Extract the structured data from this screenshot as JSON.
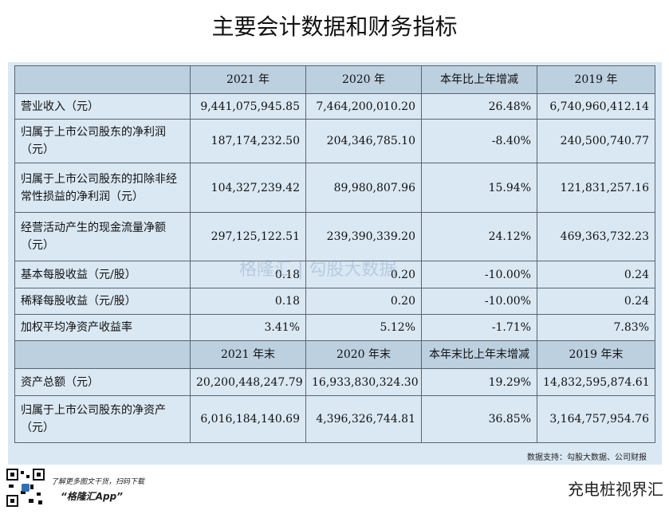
{
  "title": "主要会计数据和财务指标",
  "table": {
    "header": [
      "",
      "2021 年",
      "2020 年",
      "本年比上年增减",
      "2019 年"
    ],
    "rows": [
      [
        "营业收入（元）",
        "9,441,075,945.85",
        "7,464,200,010.20",
        "26.48%",
        "6,740,960,412.14"
      ],
      [
        "归属于上市公司股东的净利润（元）",
        "187,174,232.50",
        "204,346,785.10",
        "-8.40%",
        "240,500,740.77"
      ],
      [
        "归属于上市公司股东的扣除非经常性损益的净利润（元）",
        "104,327,239.42",
        "89,980,807.96",
        "15.94%",
        "121,831,257.16"
      ],
      [
        "经营活动产生的现金流量净额（元）",
        "297,125,122.51",
        "239,390,339.20",
        "24.12%",
        "469,363,732.23"
      ],
      [
        "基本每股收益（元/股）",
        "0.18",
        "0.20",
        "-10.00%",
        "0.24"
      ],
      [
        "稀释每股收益（元/股）",
        "0.18",
        "0.20",
        "-10.00%",
        "0.24"
      ],
      [
        "加权平均净资产收益率",
        "3.41%",
        "5.12%",
        "-1.71%",
        "7.83%"
      ]
    ],
    "header2": [
      "",
      "2021 年末",
      "2020 年末",
      "本年末比上年末增减",
      "2019 年末"
    ],
    "rows2": [
      [
        "资产总额（元）",
        "20,200,448,247.79",
        "16,933,830,324.30",
        "19.29%",
        "14,832,595,874.61"
      ],
      [
        "归属于上市公司股东的净资产（元）",
        "6,016,184,140.69",
        "4,396,326,744.81",
        "36.85%",
        "3,164,757,954.76"
      ]
    ]
  },
  "watermark": "格隆汇 | 勾股大数据",
  "source": "数据支持：勾股大数据、公司财报",
  "footer": {
    "tagline": "了解更多图文干货，扫码下载",
    "app": "“格隆汇App”",
    "brand": "充电桩视界汇"
  }
}
